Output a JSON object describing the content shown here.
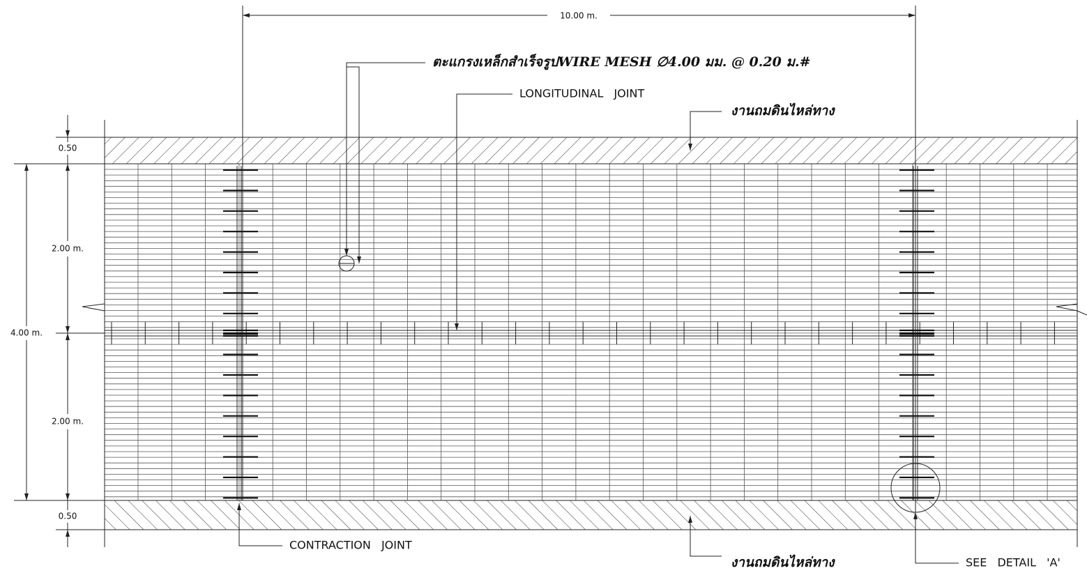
{
  "dimensions": {
    "overall_length": "10.00 m.",
    "shoulder_top": "0.50",
    "lane_width_top": "2.00 m.",
    "total_width": "4.00 m.",
    "lane_width_bottom": "2.00 m.",
    "shoulder_bottom": "0.50"
  },
  "labels": {
    "wire_mesh": "ตะแกรงเหล็กสำเร็จรูปWIRE MESH ∅4.00 มม. @ 0.20 ม.#",
    "longitudinal_joint": "LONGITUDINAL JOINT",
    "shoulder_fill_top": "งานถมดินไหล่ทาง",
    "shoulder_fill_bottom": "งานถมดินไหล่ทาง",
    "contraction_joint": "CONTRACTION JOINT",
    "see_detail": "SEE DETAIL 'A'"
  }
}
